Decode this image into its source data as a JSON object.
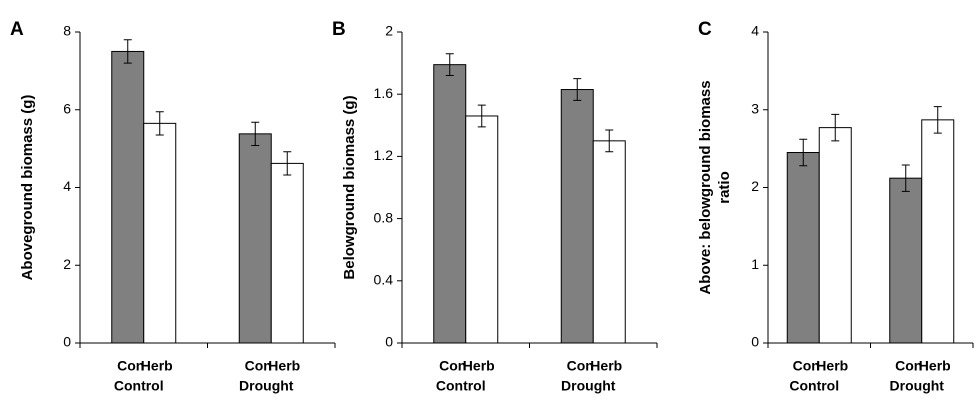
{
  "chart_data": [
    {
      "type": "bar",
      "panel_label": "A",
      "y_label": [
        "Aboveground biomass (g)"
      ],
      "categories": [
        "Control",
        "Drought"
      ],
      "series": [
        {
          "name": "Con",
          "color": "#808080",
          "values": [
            7.5,
            5.38
          ],
          "errors": [
            0.3,
            0.3
          ]
        },
        {
          "name": "Herb",
          "color": "#ffffff",
          "values": [
            5.65,
            4.62
          ],
          "errors": [
            0.3,
            0.3
          ]
        }
      ],
      "ylim": [
        0,
        8
      ],
      "yticks": [
        0,
        2,
        4,
        6,
        8
      ]
    },
    {
      "type": "bar",
      "panel_label": "B",
      "y_label": [
        "Belowground biomass (g)"
      ],
      "categories": [
        "Control",
        "Drought"
      ],
      "series": [
        {
          "name": "Con",
          "color": "#808080",
          "values": [
            1.79,
            1.63
          ],
          "errors": [
            0.07,
            0.07
          ]
        },
        {
          "name": "Herb",
          "color": "#ffffff",
          "values": [
            1.46,
            1.3
          ],
          "errors": [
            0.07,
            0.07
          ]
        }
      ],
      "ylim": [
        0,
        2
      ],
      "yticks": [
        0,
        0.4,
        0.8,
        1.2,
        1.6,
        2
      ]
    },
    {
      "type": "bar",
      "panel_label": "C",
      "y_label": [
        "Above: belowground biomass",
        "ratio"
      ],
      "categories": [
        "Control",
        "Drought"
      ],
      "series": [
        {
          "name": "Con",
          "color": "#808080",
          "values": [
            2.45,
            2.12
          ],
          "errors": [
            0.17,
            0.17
          ]
        },
        {
          "name": "Herb",
          "color": "#ffffff",
          "values": [
            2.77,
            2.87
          ],
          "errors": [
            0.17,
            0.17
          ]
        }
      ],
      "ylim": [
        0,
        4
      ],
      "yticks": [
        0,
        1,
        2,
        3,
        4
      ]
    }
  ]
}
